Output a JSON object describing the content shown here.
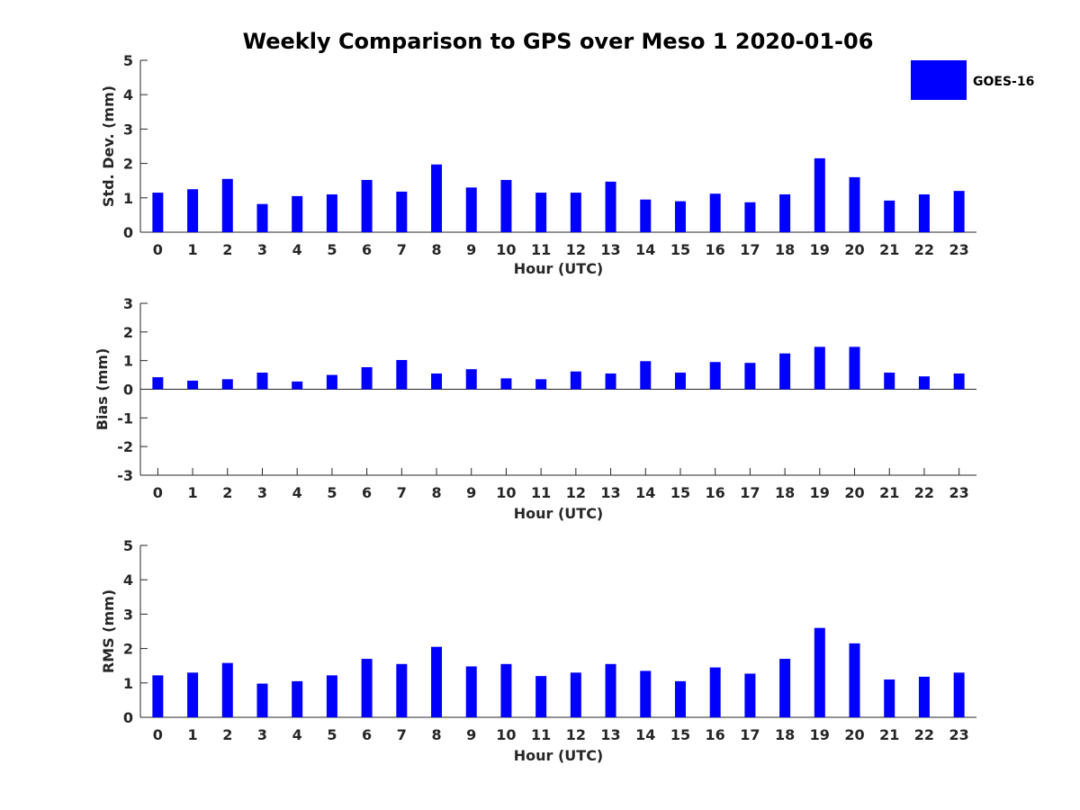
{
  "chart_data": {
    "type": "bar",
    "title": "Weekly Comparison to GPS over Meso 1 2020-01-06",
    "legend": {
      "entries": [
        "GOES-16"
      ],
      "placement": "top-right",
      "color": "#0000ff"
    },
    "bar_color": "#0000ff",
    "categories": [
      "0",
      "1",
      "2",
      "3",
      "4",
      "5",
      "6",
      "7",
      "8",
      "9",
      "10",
      "11",
      "12",
      "13",
      "14",
      "15",
      "16",
      "17",
      "18",
      "19",
      "20",
      "21",
      "22",
      "23"
    ],
    "panels": [
      {
        "ylabel": "Std. Dev. (mm)",
        "xlabel": "Hour (UTC)",
        "ylim": [
          0,
          5
        ],
        "yticks": [
          "0",
          "1",
          "2",
          "3",
          "4",
          "5"
        ],
        "series": [
          {
            "name": "GOES-16",
            "values": [
              1.15,
              1.25,
              1.55,
              0.82,
              1.05,
              1.1,
              1.52,
              1.18,
              1.97,
              1.3,
              1.52,
              1.15,
              1.15,
              1.47,
              0.95,
              0.9,
              1.12,
              0.87,
              1.1,
              2.15,
              1.6,
              0.92,
              1.1,
              1.2
            ]
          }
        ]
      },
      {
        "ylabel": "Bias (mm)",
        "xlabel": "Hour (UTC)",
        "ylim": [
          -3,
          3
        ],
        "yticks": [
          "-3",
          "-2",
          "-1",
          "0",
          "1",
          "2",
          "3"
        ],
        "series": [
          {
            "name": "GOES-16",
            "values": [
              0.42,
              0.3,
              0.35,
              0.58,
              0.27,
              0.5,
              0.77,
              1.02,
              0.55,
              0.7,
              0.38,
              0.35,
              0.62,
              0.55,
              0.98,
              0.58,
              0.95,
              0.92,
              1.25,
              1.48,
              1.48,
              0.58,
              0.45,
              0.55
            ]
          }
        ]
      },
      {
        "ylabel": "RMS (mm)",
        "xlabel": "Hour (UTC)",
        "ylim": [
          0,
          5
        ],
        "yticks": [
          "0",
          "1",
          "2",
          "3",
          "4",
          "5"
        ],
        "series": [
          {
            "name": "GOES-16",
            "values": [
              1.22,
              1.3,
              1.58,
              0.98,
              1.05,
              1.22,
              1.7,
              1.55,
              2.05,
              1.48,
              1.55,
              1.2,
              1.3,
              1.55,
              1.35,
              1.05,
              1.45,
              1.27,
              1.7,
              2.6,
              2.15,
              1.1,
              1.18,
              1.3
            ]
          }
        ]
      }
    ]
  }
}
